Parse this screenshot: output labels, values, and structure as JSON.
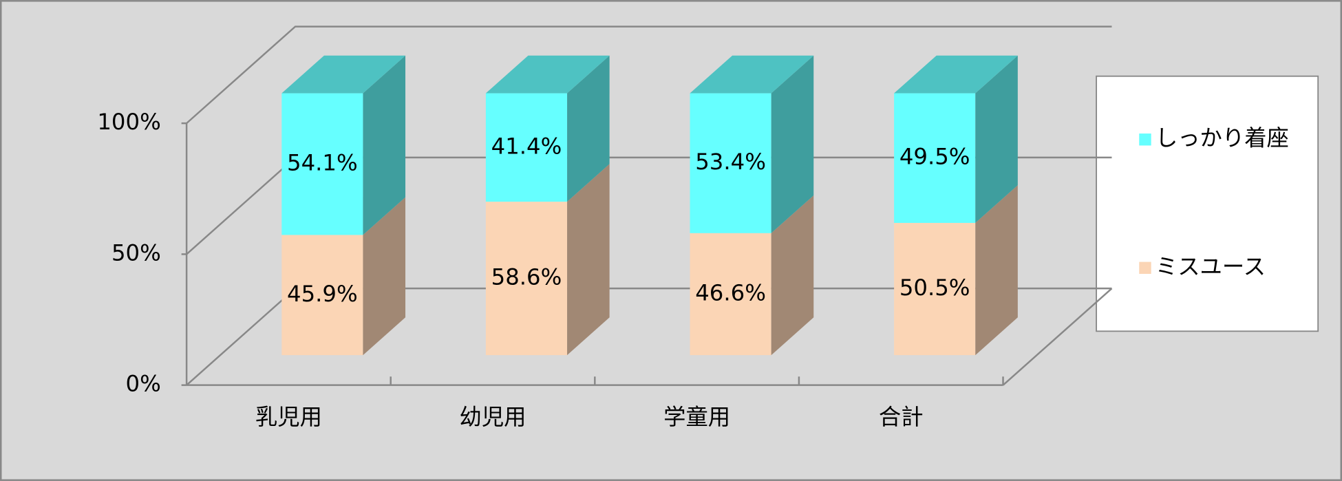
{
  "chart_data": {
    "type": "bar3d_stacked",
    "categories": [
      "乳児用",
      "幼児用",
      "学童用",
      "合計"
    ],
    "series": [
      {
        "name": "ミスユース",
        "color": "#FBD5B5",
        "values": [
          45.9,
          58.6,
          46.6,
          50.5
        ],
        "value_labels": [
          "45.9%",
          "58.6%",
          "46.6%",
          "50.5%"
        ]
      },
      {
        "name": "しっかり着座",
        "color": "#66FFFF",
        "values": [
          54.1,
          41.4,
          53.4,
          49.5
        ],
        "value_labels": [
          "54.1%",
          "41.4%",
          "53.4%",
          "49.5%"
        ]
      }
    ],
    "ylim": [
      0,
      100
    ],
    "yticks": [
      {
        "value": 0,
        "label": "0%"
      },
      {
        "value": 50,
        "label": "50%"
      },
      {
        "value": 100,
        "label": "100%"
      }
    ],
    "grid": true,
    "legend": "right"
  }
}
